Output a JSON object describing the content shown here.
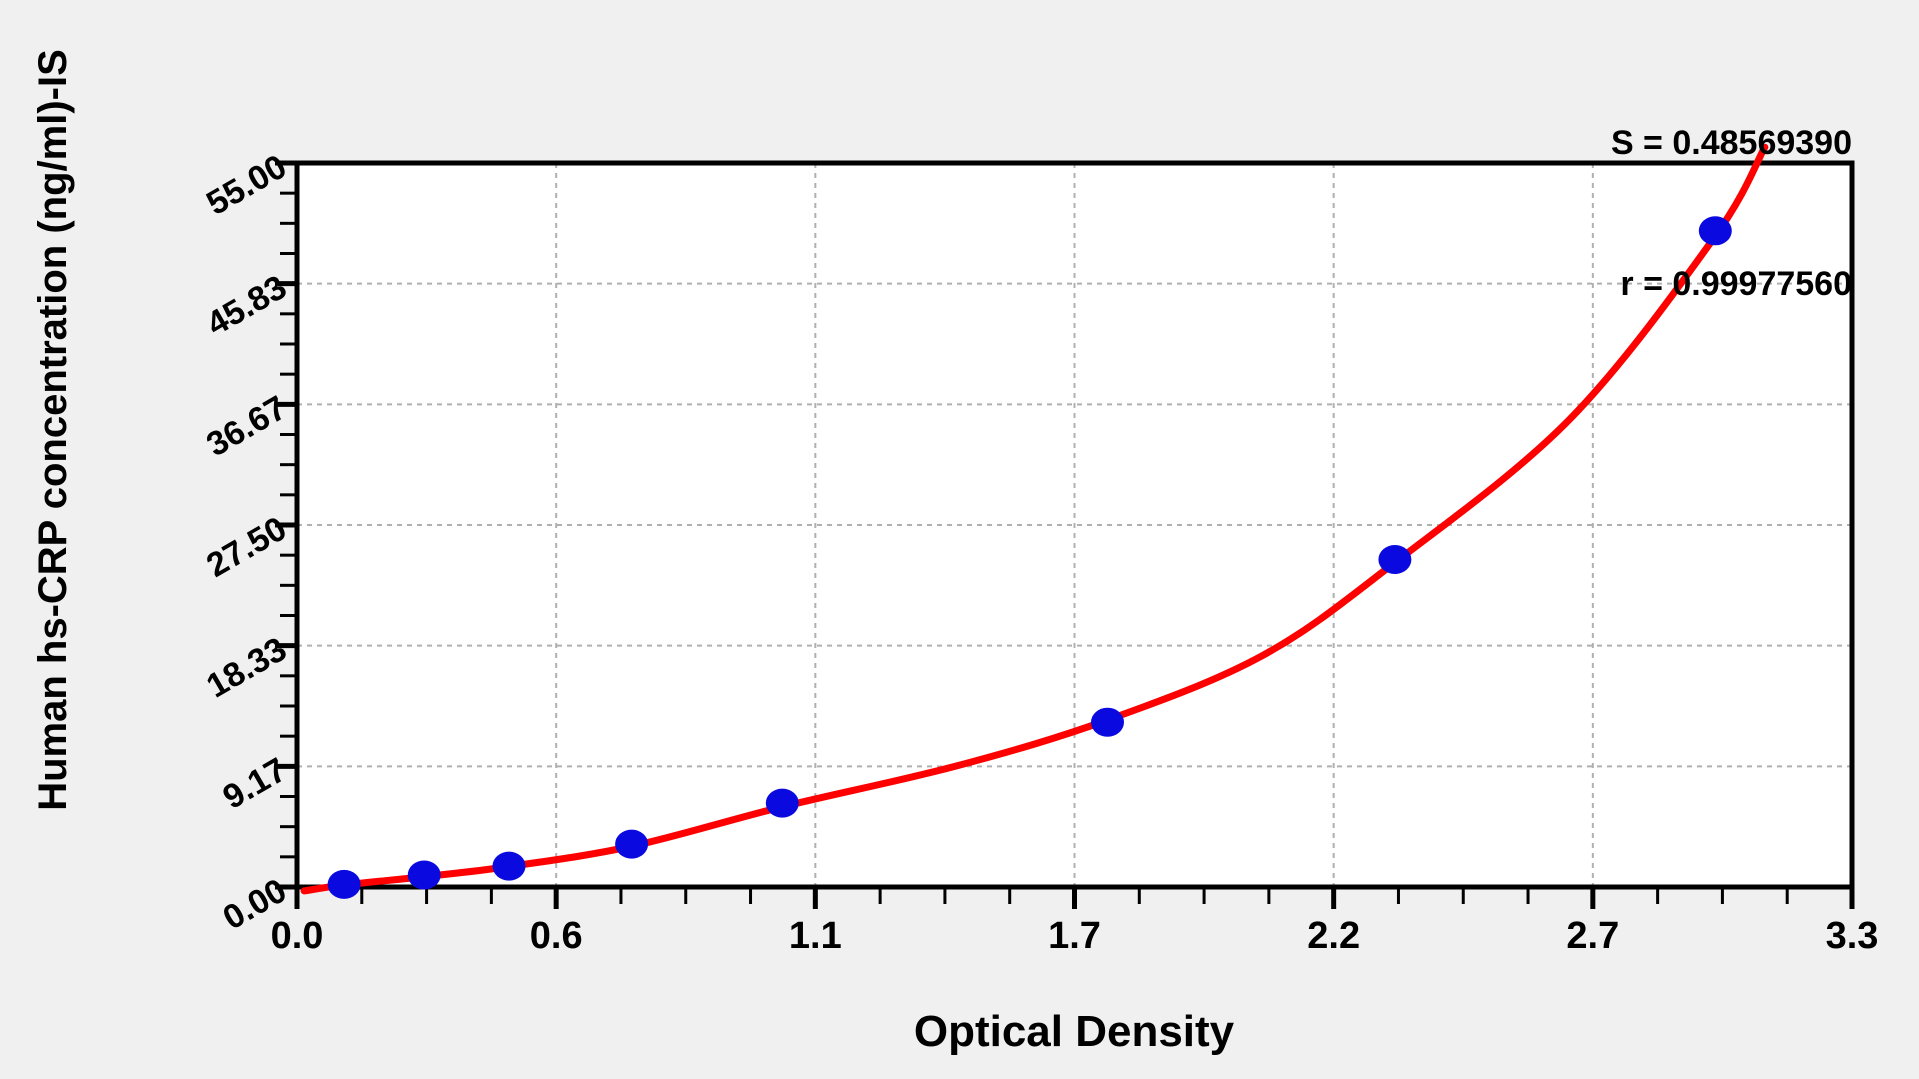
{
  "stats": {
    "s_line": "S = 0.48569390",
    "r_line": "r = 0.99977560"
  },
  "chart_data": {
    "type": "scatter",
    "title": "",
    "xlabel": "Optical Density",
    "ylabel": "Human hs-CRP concentration (ng/ml)-IS",
    "xlim": [
      0,
      3.3
    ],
    "ylim": [
      0,
      55
    ],
    "grid": "dashed gray lines at every major tick, plot area white, outer background light gray",
    "legend_position": "none",
    "x_ticks": {
      "values": [
        0,
        0.55,
        1.1,
        1.65,
        2.2,
        2.75,
        3.3
      ],
      "labels": [
        "0.0",
        "0.6",
        "1.1",
        "1.7",
        "2.2",
        "2.7",
        "3.3"
      ],
      "minor_intervals_per_major": 4
    },
    "y_ticks": {
      "values": [
        0,
        9.1667,
        18.3333,
        27.5,
        36.6667,
        45.8333,
        55
      ],
      "labels": [
        "0.00",
        "9.17",
        "18.33",
        "27.50",
        "36.67",
        "45.83",
        "55.00"
      ],
      "minor_intervals_per_major": 4,
      "label_rotation_deg": -30
    },
    "series": [
      {
        "name": "standard-points",
        "type": "scatter",
        "x": [
          0.1,
          0.27,
          0.45,
          0.71,
          1.03,
          1.72,
          2.33,
          3.01
        ],
        "y": [
          0.2,
          0.91,
          1.59,
          3.26,
          6.37,
          12.52,
          24.88,
          49.85
        ]
      },
      {
        "name": "fit-curve",
        "type": "line",
        "x": [
          0.015,
          0.1,
          0.274,
          0.448,
          0.711,
          1.031,
          1.4,
          1.721,
          2.05,
          2.328,
          2.7,
          3.007,
          3.115
        ],
        "y": [
          -0.3,
          0.15,
          0.8,
          1.55,
          3.1,
          6.1,
          9.2,
          12.7,
          17.6,
          24.6,
          35.5,
          49.3,
          56.2
        ]
      }
    ],
    "colors": {
      "point_fill": "#0a0ae0",
      "curve_stroke": "#ff0000",
      "grid_stroke": "#b0b0b0",
      "frame_stroke": "#000000",
      "plot_bg": "#ffffff",
      "outer_bg": "#f0f0f0",
      "text": "#000000"
    }
  }
}
